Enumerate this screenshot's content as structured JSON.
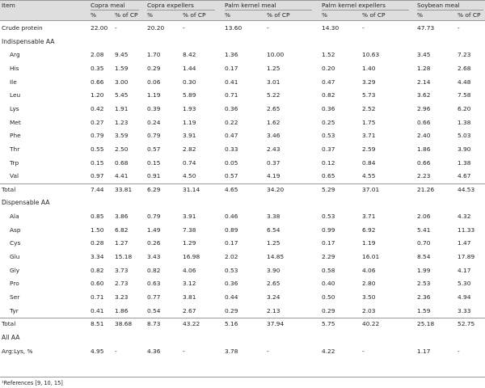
{
  "header": {
    "item": "Item",
    "groups": [
      "Copra meal",
      "Copra expellers",
      "Palm kernel meal",
      "Palm kernel expellers",
      "Soybean meal"
    ],
    "subheaders": [
      "%",
      "% of CP"
    ]
  },
  "rows": [
    {
      "kind": "row",
      "label": "Crude protein",
      "indent": false,
      "values": [
        "22.00",
        "-",
        "20.20",
        "-",
        "13.60",
        "-",
        "14.30",
        "-",
        "47.73",
        "-"
      ]
    },
    {
      "kind": "section",
      "label": "Indispensable AA"
    },
    {
      "kind": "row",
      "label": "Arg",
      "indent": true,
      "values": [
        "2.08",
        "9.45",
        "1.70",
        "8.42",
        "1.36",
        "10.00",
        "1.52",
        "10.63",
        "3.45",
        "7.23"
      ]
    },
    {
      "kind": "row",
      "label": "His",
      "indent": true,
      "values": [
        "0.35",
        "1.59",
        "0.29",
        "1.44",
        "0.17",
        "1.25",
        "0.20",
        "1.40",
        "1.28",
        "2.68"
      ]
    },
    {
      "kind": "row",
      "label": "Ile",
      "indent": true,
      "values": [
        "0.66",
        "3.00",
        "0.06",
        "0.30",
        "0.41",
        "3.01",
        "0.47",
        "3.29",
        "2.14",
        "4.48"
      ]
    },
    {
      "kind": "row",
      "label": "Leu",
      "indent": true,
      "values": [
        "1.20",
        "5.45",
        "1.19",
        "5.89",
        "0.71",
        "5.22",
        "0.82",
        "5.73",
        "3.62",
        "7.58"
      ]
    },
    {
      "kind": "row",
      "label": "Lys",
      "indent": true,
      "values": [
        "0.42",
        "1.91",
        "0.39",
        "1.93",
        "0.36",
        "2.65",
        "0.36",
        "2.52",
        "2.96",
        "6.20"
      ]
    },
    {
      "kind": "row",
      "label": "Met",
      "indent": true,
      "values": [
        "0.27",
        "1.23",
        "0.24",
        "1.19",
        "0.22",
        "1.62",
        "0.25",
        "1.75",
        "0.66",
        "1.38"
      ]
    },
    {
      "kind": "row",
      "label": "Phe",
      "indent": true,
      "values": [
        "0.79",
        "3.59",
        "0.79",
        "3.91",
        "0.47",
        "3.46",
        "0.53",
        "3.71",
        "2.40",
        "5.03"
      ]
    },
    {
      "kind": "row",
      "label": "Thr",
      "indent": true,
      "values": [
        "0.55",
        "2.50",
        "0.57",
        "2.82",
        "0.33",
        "2.43",
        "0.37",
        "2.59",
        "1.86",
        "3.90"
      ]
    },
    {
      "kind": "row",
      "label": "Trp",
      "indent": true,
      "values": [
        "0.15",
        "0.68",
        "0.15",
        "0.74",
        "0.05",
        "0.37",
        "0.12",
        "0.84",
        "0.66",
        "1.38"
      ]
    },
    {
      "kind": "row",
      "label": "Val",
      "indent": true,
      "values": [
        "0.97",
        "4.41",
        "0.91",
        "4.50",
        "0.57",
        "4.19",
        "0.65",
        "4.55",
        "2.23",
        "4.67"
      ]
    },
    {
      "kind": "row",
      "label": "Total",
      "indent": false,
      "values": [
        "7.44",
        "33.81",
        "6.29",
        "31.14",
        "4.65",
        "34.20",
        "5.29",
        "37.01",
        "21.26",
        "44.53"
      ]
    },
    {
      "kind": "section",
      "label": "Dispensable AA"
    },
    {
      "kind": "row",
      "label": "Ala",
      "indent": true,
      "values": [
        "0.85",
        "3.86",
        "0.79",
        "3.91",
        "0.46",
        "3.38",
        "0.53",
        "3.71",
        "2.06",
        "4.32"
      ]
    },
    {
      "kind": "row",
      "label": "Asp",
      "indent": true,
      "values": [
        "1.50",
        "6.82",
        "1.49",
        "7.38",
        "0.89",
        "6.54",
        "0.99",
        "6.92",
        "5.41",
        "11.33"
      ]
    },
    {
      "kind": "row",
      "label": "Cys",
      "indent": true,
      "values": [
        "0.28",
        "1.27",
        "0.26",
        "1.29",
        "0.17",
        "1.25",
        "0.17",
        "1.19",
        "0.70",
        "1.47"
      ]
    },
    {
      "kind": "row",
      "label": "Glu",
      "indent": true,
      "values": [
        "3.34",
        "15.18",
        "3.43",
        "16.98",
        "2.02",
        "14.85",
        "2.29",
        "16.01",
        "8.54",
        "17.89"
      ]
    },
    {
      "kind": "row",
      "label": "Gly",
      "indent": true,
      "values": [
        "0.82",
        "3.73",
        "0.82",
        "4.06",
        "0.53",
        "3.90",
        "0.58",
        "4.06",
        "1.99",
        "4.17"
      ]
    },
    {
      "kind": "row",
      "label": "Pro",
      "indent": true,
      "values": [
        "0.60",
        "2.73",
        "0.63",
        "3.12",
        "0.36",
        "2.65",
        "0.40",
        "2.80",
        "2.53",
        "5.30"
      ]
    },
    {
      "kind": "row",
      "label": "Ser",
      "indent": true,
      "values": [
        "0.71",
        "3.23",
        "0.77",
        "3.81",
        "0.44",
        "3.24",
        "0.50",
        "3.50",
        "2.36",
        "4.94"
      ]
    },
    {
      "kind": "row",
      "label": "Tyr",
      "indent": true,
      "values": [
        "0.41",
        "1.86",
        "0.54",
        "2.67",
        "0.29",
        "2.13",
        "0.29",
        "2.03",
        "1.59",
        "3.33"
      ]
    },
    {
      "kind": "row",
      "label": "Total",
      "indent": false,
      "values": [
        "8.51",
        "38.68",
        "8.73",
        "43.22",
        "5.16",
        "37.94",
        "5.75",
        "40.22",
        "25.18",
        "52.75"
      ]
    },
    {
      "kind": "section",
      "label": "All AA"
    },
    {
      "kind": "row",
      "label": "Arg:Lys, %",
      "indent": false,
      "values": [
        "4.95",
        "-",
        "4.36",
        "-",
        "3.78",
        "-",
        "4.22",
        "-",
        "1.17",
        "-"
      ]
    }
  ],
  "footnote": "¹References [9, 10, 15]"
}
